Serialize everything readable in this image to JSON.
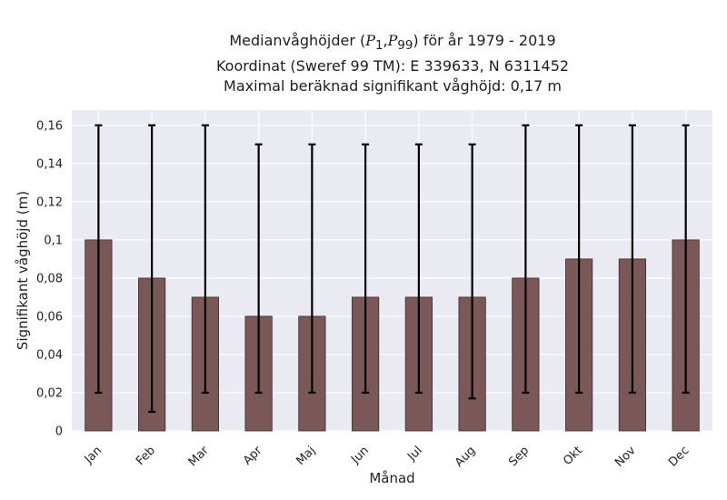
{
  "chart_data": {
    "type": "bar",
    "title": {
      "line1_prefix": "Medianvåghöjder (",
      "p_symbol": "P",
      "p1_sub": "1",
      "p99_sub": "99",
      "line1_suffix": ") för år 1979 - 2019",
      "line2": "Koordinat (Sweref 99 TM): E 339633, N 6311452",
      "line3": "Maximal beräknad signifikant våghöjd: 0,17 m"
    },
    "xlabel": "Månad",
    "ylabel": "Signifikant våghöjd (m)",
    "ylim": [
      0,
      0.168
    ],
    "yticks": [
      0,
      0.02,
      0.04,
      0.06,
      0.08,
      0.1,
      0.12,
      0.14,
      0.16
    ],
    "ytick_labels": [
      "0",
      "0,02",
      "0,04",
      "0,06",
      "0,08",
      "0,1",
      "0,12",
      "0,14",
      "0,16"
    ],
    "categories": [
      "Jan",
      "Feb",
      "Mar",
      "Apr",
      "Maj",
      "Jun",
      "Jul",
      "Aug",
      "Sep",
      "Okt",
      "Nov",
      "Dec"
    ],
    "values": [
      0.1,
      0.08,
      0.07,
      0.06,
      0.06,
      0.07,
      0.07,
      0.07,
      0.08,
      0.09,
      0.09,
      0.1
    ],
    "error_low": [
      0.02,
      0.01,
      0.02,
      0.02,
      0.02,
      0.02,
      0.02,
      0.017,
      0.02,
      0.02,
      0.02,
      0.02
    ],
    "error_high": [
      0.16,
      0.16,
      0.16,
      0.15,
      0.15,
      0.15,
      0.15,
      0.15,
      0.16,
      0.16,
      0.16,
      0.16
    ],
    "grid": true,
    "colors": {
      "bar": "#7a5858",
      "bar_edge": "#3a2a2a",
      "plot_bg": "#eaeaf2",
      "grid": "#ffffff",
      "error_bar": "#000000"
    }
  }
}
